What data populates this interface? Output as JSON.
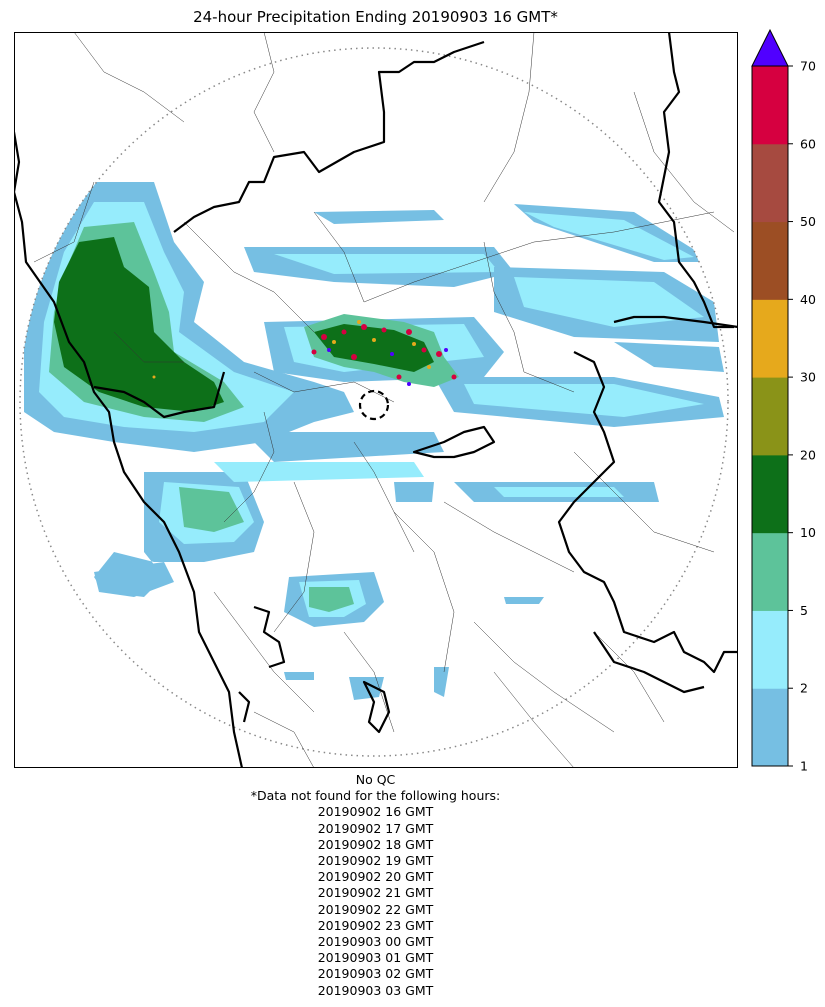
{
  "title": "24-hour Precipitation Ending 20190903 16 GMT*",
  "notes": {
    "qc": "No QC",
    "missing_header": "*Data not found for the following hours:",
    "missing_hours": [
      "20190902 16 GMT",
      "20190902 17 GMT",
      "20190902 18 GMT",
      "20190902 19 GMT",
      "20190902 20 GMT",
      "20190902 21 GMT",
      "20190902 22 GMT",
      "20190902 23 GMT",
      "20190903 00 GMT",
      "20190903 01 GMT",
      "20190903 02 GMT",
      "20190903 03 GMT"
    ]
  },
  "colorbar": {
    "ticks": [
      "1",
      "2",
      "5",
      "10",
      "20",
      "30",
      "40",
      "50",
      "60",
      "70"
    ],
    "bins": [
      {
        "range": "1-2",
        "color": "#76bfe3"
      },
      {
        "range": "2-5",
        "color": "#96ecfc"
      },
      {
        "range": "5-10",
        "color": "#5dc39a"
      },
      {
        "range": "10-20",
        "color": "#0d7019"
      },
      {
        "range": "20-30",
        "color": "#8a9318"
      },
      {
        "range": "30-40",
        "color": "#e6a91c"
      },
      {
        "range": "40-50",
        "color": "#9c4e24"
      },
      {
        "range": "50-60",
        "color": "#a64a40"
      },
      {
        "range": "60-70",
        "color": "#d60040"
      }
    ],
    "extend_color": "#5000ff"
  }
}
